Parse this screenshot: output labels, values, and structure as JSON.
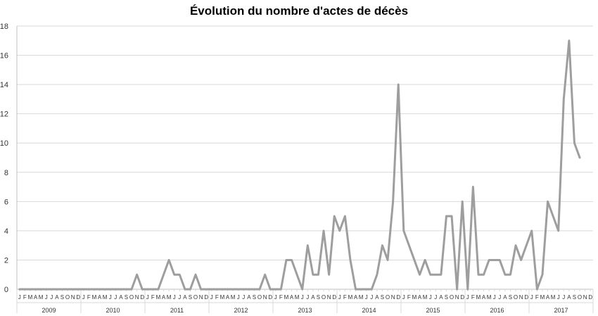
{
  "chart_data": {
    "type": "line",
    "title": "Évolution du nombre d'actes de décès",
    "xlabel": "",
    "ylabel": "",
    "ylim": [
      0,
      18
    ],
    "yticks": [
      0,
      2,
      4,
      6,
      8,
      10,
      12,
      14,
      16,
      18
    ],
    "grid": true,
    "legend": "none",
    "line_color": "#9e9e9e",
    "month_labels": [
      "J",
      "F",
      "M",
      "A",
      "M",
      "J",
      "J",
      "A",
      "S",
      "O",
      "N",
      "D"
    ],
    "years": [
      "2009",
      "2010",
      "2011",
      "2012",
      "2013",
      "2014",
      "2015",
      "2016",
      "2017"
    ],
    "series": [
      {
        "values": [
          0,
          0,
          0,
          0,
          0,
          0,
          0,
          0,
          0,
          0,
          0,
          0,
          0,
          0,
          0,
          0,
          0,
          0,
          0,
          0,
          0,
          0,
          1,
          0,
          0,
          0,
          0,
          1,
          2,
          1,
          1,
          0,
          0,
          1,
          0,
          0,
          0,
          0,
          0,
          0,
          0,
          0,
          0,
          0,
          0,
          0,
          1,
          0,
          0,
          0,
          2,
          2,
          1,
          0,
          3,
          1,
          1,
          4,
          1,
          5,
          4,
          5,
          2,
          0,
          0,
          0,
          0,
          1,
          3,
          2,
          6,
          14,
          4,
          3,
          2,
          1,
          2,
          1,
          1,
          1,
          5,
          5,
          0,
          6,
          0,
          7,
          1,
          1,
          2,
          2,
          2,
          1,
          1,
          3,
          2,
          3,
          4,
          0,
          1,
          6,
          5,
          4,
          13,
          17,
          10,
          9
        ]
      }
    ]
  }
}
